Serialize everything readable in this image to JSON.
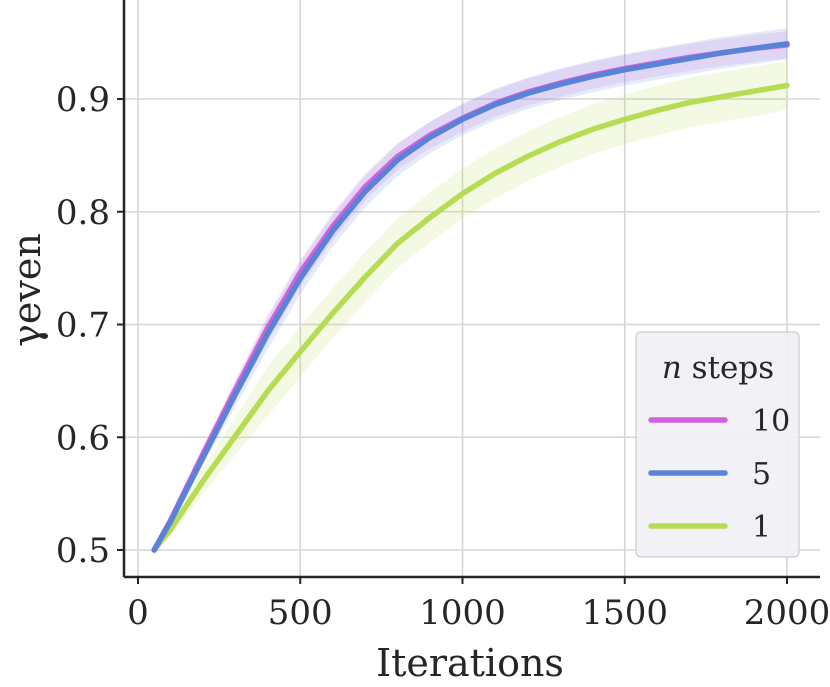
{
  "chart_data": {
    "type": "line",
    "title": "",
    "xlabel": "Iterations",
    "ylabel": "γeven",
    "xlim": [
      0,
      2000
    ],
    "ylim": [
      0.5,
      0.96
    ],
    "xticks": [
      "0",
      "500",
      "1000",
      "1500",
      "2000"
    ],
    "yticks": [
      "0.5",
      "0.6",
      "0.7",
      "0.8",
      "0.9"
    ],
    "grid": true,
    "legend": {
      "title_var": "n",
      "title_rest": " steps",
      "position": "bottom-right"
    },
    "x": [
      50,
      100,
      200,
      300,
      400,
      500,
      600,
      700,
      800,
      900,
      1000,
      1100,
      1200,
      1300,
      1400,
      1500,
      1600,
      1700,
      1800,
      1900,
      2000
    ],
    "series": [
      {
        "name": "10",
        "color": "#d161d8",
        "values": [
          0.5,
          0.526,
          0.585,
          0.642,
          0.697,
          0.746,
          0.787,
          0.822,
          0.849,
          0.868,
          0.883,
          0.896,
          0.906,
          0.914,
          0.921,
          0.927,
          0.932,
          0.937,
          0.941,
          0.945,
          0.948
        ],
        "band": 0.012
      },
      {
        "name": "5",
        "color": "#5a82d9",
        "values": [
          0.5,
          0.525,
          0.582,
          0.638,
          0.692,
          0.741,
          0.783,
          0.818,
          0.846,
          0.866,
          0.882,
          0.895,
          0.905,
          0.913,
          0.92,
          0.926,
          0.931,
          0.936,
          0.941,
          0.945,
          0.949
        ],
        "band": 0.014
      },
      {
        "name": "1",
        "color": "#b5dc52",
        "values": [
          0.5,
          0.518,
          0.561,
          0.601,
          0.641,
          0.676,
          0.71,
          0.742,
          0.772,
          0.795,
          0.816,
          0.834,
          0.849,
          0.862,
          0.873,
          0.882,
          0.89,
          0.897,
          0.902,
          0.907,
          0.912
        ],
        "band": 0.022
      }
    ]
  }
}
